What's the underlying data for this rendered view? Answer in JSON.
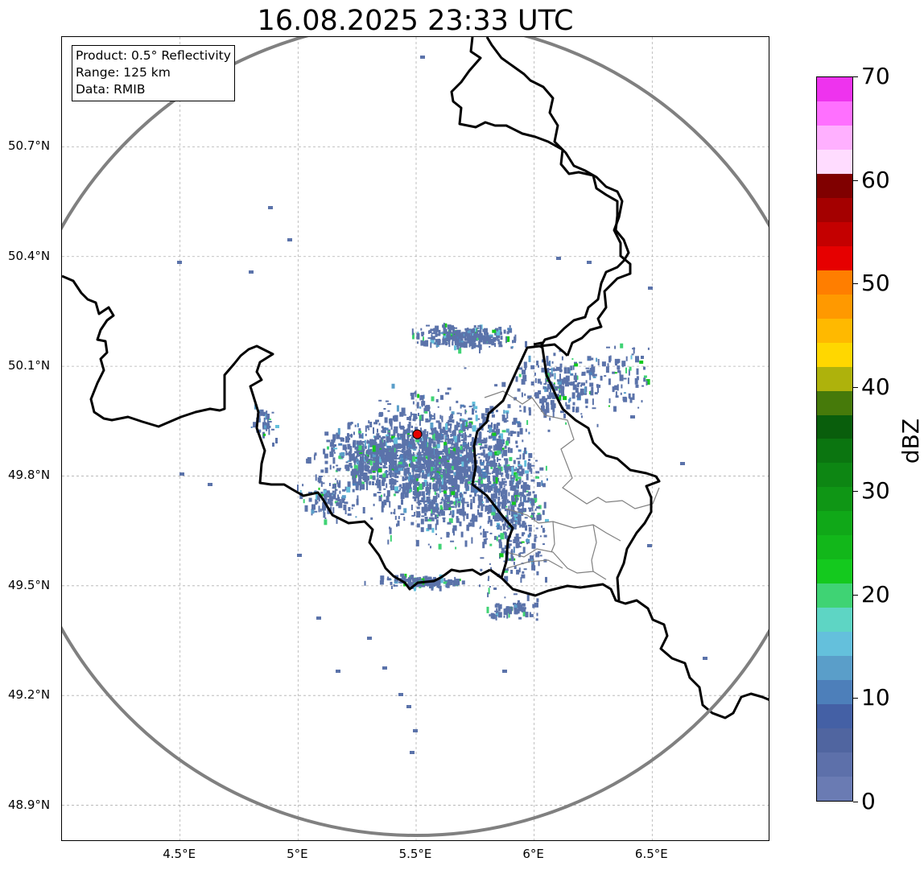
{
  "title": "16.08.2025 23:33 UTC",
  "info_box": {
    "product": "Product: 0.5° Reflectivity",
    "range": "Range: 125 km",
    "data": "Data: RMIB"
  },
  "map": {
    "extent_lon": [
      4.0,
      7.0
    ],
    "extent_lat": [
      48.8,
      51.0
    ],
    "lat_ticks": [
      {
        "value": 50.7,
        "label": "50.7°N"
      },
      {
        "value": 50.4,
        "label": "50.4°N"
      },
      {
        "value": 50.1,
        "label": "50.1°N"
      },
      {
        "value": 49.8,
        "label": "49.8°N"
      },
      {
        "value": 49.5,
        "label": "49.5°N"
      },
      {
        "value": 49.2,
        "label": "49.2°N"
      },
      {
        "value": 48.9,
        "label": "48.9°N"
      }
    ],
    "lon_ticks": [
      {
        "value": 4.5,
        "label": "4.5°E"
      },
      {
        "value": 5.0,
        "label": "5°E"
      },
      {
        "value": 5.5,
        "label": "5.5°E"
      },
      {
        "value": 6.0,
        "label": "6°E"
      },
      {
        "value": 6.5,
        "label": "6.5°E"
      }
    ],
    "radar_site": {
      "lon": 5.505,
      "lat": 49.914,
      "color": "#e60000"
    },
    "range_ring_color": "#808080",
    "border_color": "#000000",
    "admin_border_color": "#808080",
    "grid_color": "#b0b0b0"
  },
  "colorbar": {
    "label": "dBZ",
    "min": 0,
    "max": 70,
    "ticks": [
      {
        "value": 0,
        "label": "0"
      },
      {
        "value": 10,
        "label": "10"
      },
      {
        "value": 20,
        "label": "20"
      },
      {
        "value": 30,
        "label": "30"
      },
      {
        "value": 40,
        "label": "40"
      },
      {
        "value": 50,
        "label": "50"
      },
      {
        "value": 60,
        "label": "60"
      },
      {
        "value": 70,
        "label": "70"
      }
    ],
    "colors": [
      "#6a7bb3",
      "#5d70aa",
      "#5065a0",
      "#4460a5",
      "#4d7fba",
      "#5a9ec9",
      "#64c0dc",
      "#5ed5c4",
      "#3fd374",
      "#14c91e",
      "#12b71a",
      "#10a818",
      "#0f9615",
      "#0d8613",
      "#0b7510",
      "#095e0c",
      "#467a0a",
      "#aeb20c",
      "#ffd700",
      "#ffb900",
      "#ff9900",
      "#ff7e00",
      "#e60000",
      "#c40000",
      "#a40000",
      "#800000",
      "#ffdcff",
      "#ffb0ff",
      "#ff70ff",
      "#ee33ee"
    ]
  }
}
